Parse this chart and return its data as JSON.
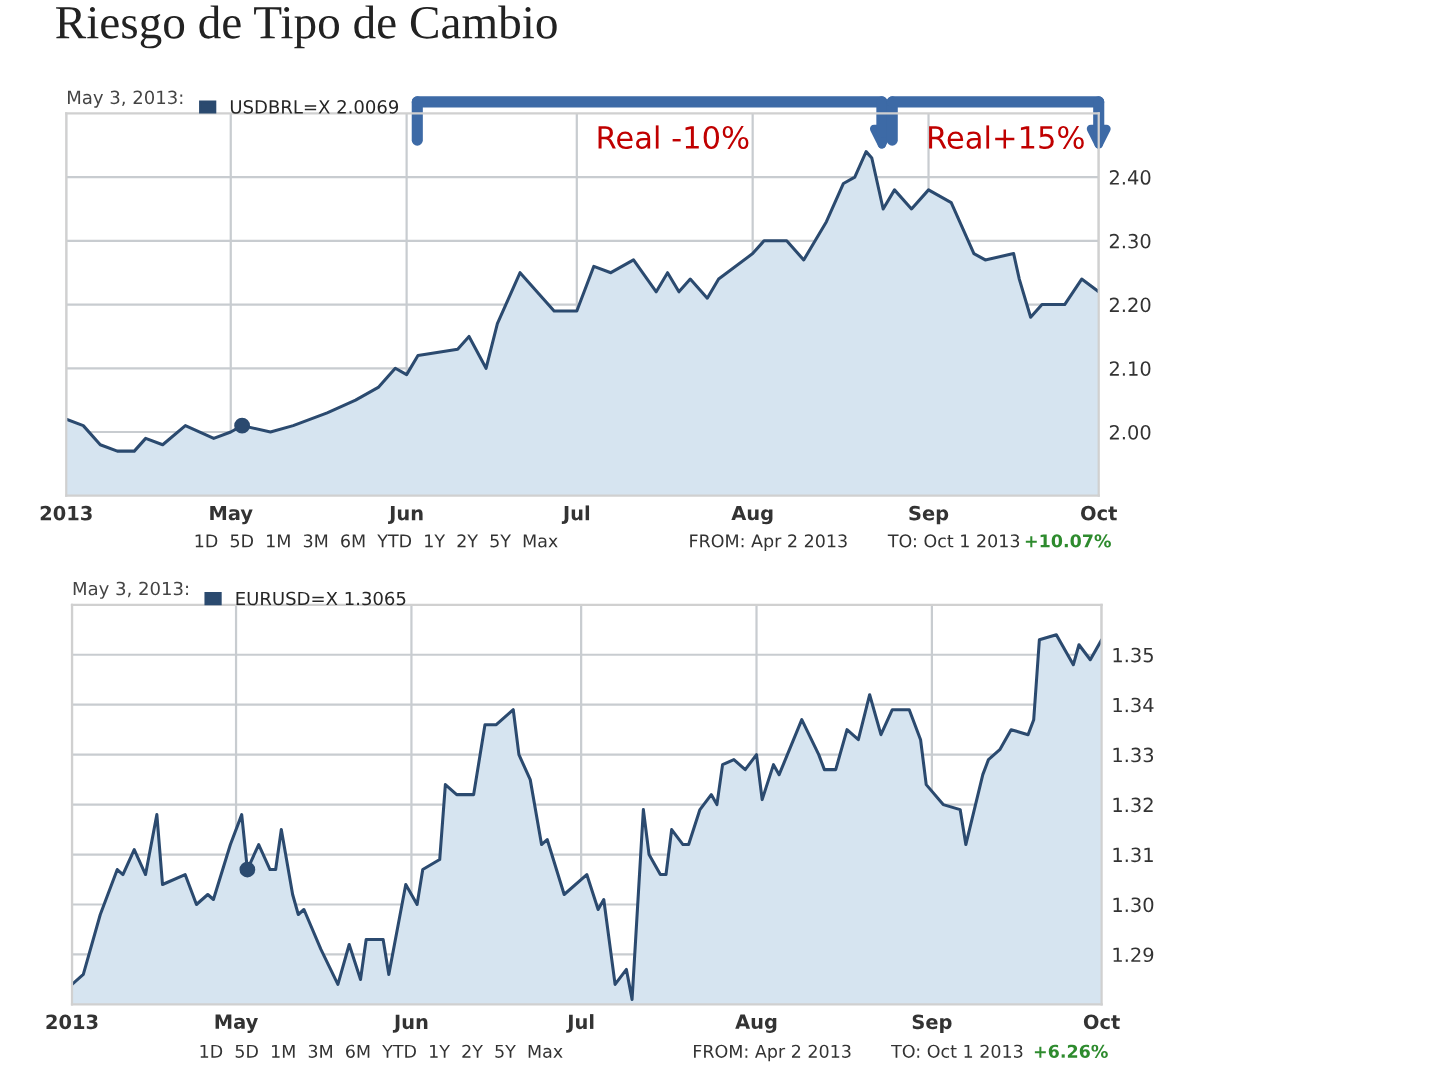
{
  "chart_data": [
    {
      "type": "area",
      "title": "Riesgo de Tipo de Cambio",
      "subtitle": "May 3, 2013:",
      "x": [
        "2013-04-02",
        "2013-04-05",
        "2013-04-08",
        "2013-04-11",
        "2013-04-14",
        "2013-04-16",
        "2013-04-19",
        "2013-04-23",
        "2013-04-28",
        "2013-05-01",
        "2013-05-03",
        "2013-05-08",
        "2013-05-12",
        "2013-05-18",
        "2013-05-23",
        "2013-05-27",
        "2013-05-30",
        "2013-06-01",
        "2013-06-03",
        "2013-06-10",
        "2013-06-12",
        "2013-06-15",
        "2013-06-17",
        "2013-06-21",
        "2013-06-27",
        "2013-07-01",
        "2013-07-04",
        "2013-07-07",
        "2013-07-11",
        "2013-07-15",
        "2013-07-17",
        "2013-07-19",
        "2013-07-21",
        "2013-07-24",
        "2013-07-26",
        "2013-08-01",
        "2013-08-03",
        "2013-08-07",
        "2013-08-10",
        "2013-08-14",
        "2013-08-17",
        "2013-08-19",
        "2013-08-21",
        "2013-08-22",
        "2013-08-24",
        "2013-08-26",
        "2013-08-29",
        "2013-09-01",
        "2013-09-05",
        "2013-09-09",
        "2013-09-11",
        "2013-09-16",
        "2013-09-17",
        "2013-09-19",
        "2013-09-21",
        "2013-09-25",
        "2013-09-28",
        "2013-10-01"
      ],
      "series": [
        {
          "name": "USDBRL=X 2.0069",
          "color": "#2b4a6f",
          "values": [
            2.02,
            2.01,
            1.98,
            1.97,
            1.97,
            1.99,
            1.98,
            2.01,
            1.99,
            2.0,
            2.01,
            2.0,
            2.01,
            2.03,
            2.05,
            2.07,
            2.1,
            2.09,
            2.12,
            2.13,
            2.15,
            2.1,
            2.17,
            2.25,
            2.19,
            2.19,
            2.26,
            2.25,
            2.27,
            2.22,
            2.25,
            2.22,
            2.24,
            2.21,
            2.24,
            2.28,
            2.3,
            2.3,
            2.27,
            2.33,
            2.39,
            2.4,
            2.44,
            2.43,
            2.35,
            2.38,
            2.35,
            2.38,
            2.36,
            2.28,
            2.27,
            2.28,
            2.24,
            2.18,
            2.2,
            2.2,
            2.24,
            2.22
          ]
        },
        {
          "type": "scatter",
          "x": [
            "2013-05-03"
          ],
          "color": "#2b4a6f",
          "marker": "circle",
          "values": [
            2.01
          ]
        }
      ],
      "xlim": [
        "2013-04-02",
        "2013-10-01"
      ],
      "xticks": [
        {
          "value": "2013-04-02",
          "label": "2013"
        },
        {
          "value": "2013-05-01",
          "label": "May"
        },
        {
          "value": "2013-06-01",
          "label": "Jun"
        },
        {
          "value": "2013-07-01",
          "label": "Jul"
        },
        {
          "value": "2013-08-01",
          "label": "Aug"
        },
        {
          "value": "2013-09-01",
          "label": "Sep"
        },
        {
          "value": "2013-10-01",
          "label": "Oct"
        }
      ],
      "ylim": [
        1.9,
        2.5
      ],
      "yticks": [
        {
          "value": 2.0,
          "label": "2.00"
        },
        {
          "value": 2.1,
          "label": "2.10"
        },
        {
          "value": 2.2,
          "label": "2.20"
        },
        {
          "value": 2.3,
          "label": "2.30"
        },
        {
          "value": 2.4,
          "label": "2.40"
        }
      ],
      "grid": true,
      "legend": "top left",
      "annotations": [
        "Real -10%",
        "Real+15%",
        "1D  5D  1M  3M  6M  YTD  1Y  2Y  5Y  Max",
        "FROM: Apr 2 2013",
        "TO: Oct 1 2013",
        "+10.07%"
      ]
    },
    {
      "type": "area",
      "subtitle": "May 3, 2013:",
      "x": [
        "2013-04-02",
        "2013-04-04",
        "2013-04-07",
        "2013-04-10",
        "2013-04-11",
        "2013-04-13",
        "2013-04-15",
        "2013-04-17",
        "2013-04-18",
        "2013-04-22",
        "2013-04-24",
        "2013-04-26",
        "2013-04-27",
        "2013-04-30",
        "2013-05-02",
        "2013-05-03",
        "2013-05-05",
        "2013-05-07",
        "2013-05-08",
        "2013-05-09",
        "2013-05-11",
        "2013-05-12",
        "2013-05-13",
        "2013-05-16",
        "2013-05-19",
        "2013-05-21",
        "2013-05-23",
        "2013-05-24",
        "2013-05-27",
        "2013-05-28",
        "2013-05-31",
        "2013-06-02",
        "2013-06-03",
        "2013-06-06",
        "2013-06-07",
        "2013-06-09",
        "2013-06-12",
        "2013-06-14",
        "2013-06-16",
        "2013-06-19",
        "2013-06-20",
        "2013-06-22",
        "2013-06-24",
        "2013-06-25",
        "2013-06-28",
        "2013-07-02",
        "2013-07-04",
        "2013-07-05",
        "2013-07-07",
        "2013-07-09",
        "2013-07-10",
        "2013-07-12",
        "2013-07-13",
        "2013-07-15",
        "2013-07-16",
        "2013-07-17",
        "2013-07-19",
        "2013-07-20",
        "2013-07-22",
        "2013-07-24",
        "2013-07-25",
        "2013-07-26",
        "2013-07-28",
        "2013-07-30",
        "2013-08-01",
        "2013-08-02",
        "2013-08-04",
        "2013-08-05",
        "2013-08-09",
        "2013-08-12",
        "2013-08-13",
        "2013-08-15",
        "2013-08-17",
        "2013-08-19",
        "2013-08-21",
        "2013-08-23",
        "2013-08-25",
        "2013-08-28",
        "2013-08-30",
        "2013-08-31",
        "2013-09-03",
        "2013-09-06",
        "2013-09-07",
        "2013-09-10",
        "2013-09-11",
        "2013-09-13",
        "2013-09-15",
        "2013-09-18",
        "2013-09-19",
        "2013-09-20",
        "2013-09-23",
        "2013-09-26",
        "2013-09-27",
        "2013-09-29",
        "2013-10-01"
      ],
      "series": [
        {
          "name": "EURUSD=X 1.3065",
          "color": "#2b4a6f",
          "values": [
            1.284,
            1.286,
            1.298,
            1.307,
            1.306,
            1.311,
            1.306,
            1.318,
            1.304,
            1.306,
            1.3,
            1.302,
            1.301,
            1.312,
            1.318,
            1.307,
            1.312,
            1.307,
            1.307,
            1.315,
            1.302,
            1.298,
            1.299,
            1.291,
            1.284,
            1.292,
            1.285,
            1.293,
            1.293,
            1.286,
            1.304,
            1.3,
            1.307,
            1.309,
            1.324,
            1.322,
            1.322,
            1.336,
            1.336,
            1.339,
            1.33,
            1.325,
            1.312,
            1.313,
            1.302,
            1.306,
            1.299,
            1.301,
            1.284,
            1.287,
            1.281,
            1.319,
            1.31,
            1.306,
            1.306,
            1.315,
            1.312,
            1.312,
            1.319,
            1.322,
            1.32,
            1.328,
            1.329,
            1.327,
            1.33,
            1.321,
            1.328,
            1.326,
            1.337,
            1.33,
            1.327,
            1.327,
            1.335,
            1.333,
            1.342,
            1.334,
            1.339,
            1.339,
            1.333,
            1.324,
            1.32,
            1.319,
            1.312,
            1.326,
            1.329,
            1.331,
            1.335,
            1.334,
            1.337,
            1.353,
            1.354,
            1.348,
            1.352,
            1.349,
            1.353
          ]
        },
        {
          "type": "scatter",
          "x": [
            "2013-05-03"
          ],
          "color": "#2b4a6f",
          "marker": "circle",
          "values": [
            1.307
          ]
        }
      ],
      "xlim": [
        "2013-04-02",
        "2013-10-01"
      ],
      "xticks": [
        {
          "value": "2013-04-02",
          "label": "2013"
        },
        {
          "value": "2013-05-01",
          "label": "May"
        },
        {
          "value": "2013-06-01",
          "label": "Jun"
        },
        {
          "value": "2013-07-01",
          "label": "Jul"
        },
        {
          "value": "2013-08-01",
          "label": "Aug"
        },
        {
          "value": "2013-09-01",
          "label": "Sep"
        },
        {
          "value": "2013-10-01",
          "label": "Oct"
        }
      ],
      "ylim": [
        1.28,
        1.36
      ],
      "yticks": [
        {
          "value": 1.29,
          "label": "1.29"
        },
        {
          "value": 1.3,
          "label": "1.30"
        },
        {
          "value": 1.31,
          "label": "1.31"
        },
        {
          "value": 1.32,
          "label": "1.32"
        },
        {
          "value": 1.33,
          "label": "1.33"
        },
        {
          "value": 1.34,
          "label": "1.34"
        },
        {
          "value": 1.35,
          "label": "1.35"
        }
      ],
      "grid": true,
      "legend": "top left",
      "annotations": [
        "1D  5D  1M  3M  6M  YTD  1Y  2Y  5Y  Max",
        "FROM: Apr 2 2013",
        "TO: Oct 1 2013",
        "+6.26%"
      ]
    }
  ]
}
